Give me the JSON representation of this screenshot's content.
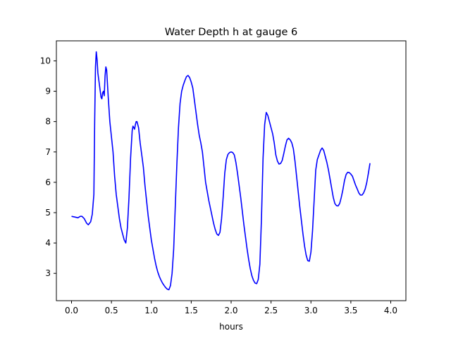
{
  "chart_data": {
    "type": "line",
    "title": "Water Depth h at gauge 6",
    "xlabel": "hours",
    "ylabel": "",
    "xlim": [
      -0.19,
      4.19
    ],
    "ylim": [
      2.1,
      10.66
    ],
    "xticks": [
      0.0,
      0.5,
      1.0,
      1.5,
      2.0,
      2.5,
      3.0,
      3.5,
      4.0
    ],
    "xtick_labels": [
      "0.0",
      "0.5",
      "1.0",
      "1.5",
      "2.0",
      "2.5",
      "3.0",
      "3.5",
      "4.0"
    ],
    "yticks": [
      3,
      4,
      5,
      6,
      7,
      8,
      9,
      10
    ],
    "ytick_labels": [
      "3",
      "4",
      "5",
      "6",
      "7",
      "8",
      "9",
      "10"
    ],
    "grid": false,
    "series": [
      {
        "color": "#0000ff",
        "points": [
          [
            0.0,
            4.88
          ],
          [
            0.05,
            4.85
          ],
          [
            0.08,
            4.83
          ],
          [
            0.11,
            4.88
          ],
          [
            0.13,
            4.88
          ],
          [
            0.16,
            4.8
          ],
          [
            0.19,
            4.65
          ],
          [
            0.21,
            4.6
          ],
          [
            0.24,
            4.7
          ],
          [
            0.26,
            4.95
          ],
          [
            0.28,
            5.6
          ],
          [
            0.29,
            8.0
          ],
          [
            0.3,
            9.8
          ],
          [
            0.31,
            10.3
          ],
          [
            0.32,
            10.05
          ],
          [
            0.33,
            9.6
          ],
          [
            0.35,
            9.2
          ],
          [
            0.37,
            8.8
          ],
          [
            0.38,
            8.75
          ],
          [
            0.39,
            8.95
          ],
          [
            0.4,
            9.0
          ],
          [
            0.41,
            8.85
          ],
          [
            0.42,
            9.5
          ],
          [
            0.43,
            9.8
          ],
          [
            0.44,
            9.7
          ],
          [
            0.46,
            8.8
          ],
          [
            0.48,
            8.0
          ],
          [
            0.5,
            7.5
          ],
          [
            0.52,
            7.0
          ],
          [
            0.54,
            6.2
          ],
          [
            0.56,
            5.6
          ],
          [
            0.58,
            5.2
          ],
          [
            0.6,
            4.8
          ],
          [
            0.62,
            4.5
          ],
          [
            0.64,
            4.3
          ],
          [
            0.66,
            4.1
          ],
          [
            0.68,
            4.0
          ],
          [
            0.7,
            4.5
          ],
          [
            0.72,
            5.5
          ],
          [
            0.74,
            6.8
          ],
          [
            0.76,
            7.7
          ],
          [
            0.77,
            7.85
          ],
          [
            0.78,
            7.8
          ],
          [
            0.79,
            7.75
          ],
          [
            0.8,
            7.9
          ],
          [
            0.81,
            8.0
          ],
          [
            0.82,
            8.0
          ],
          [
            0.84,
            7.8
          ],
          [
            0.86,
            7.3
          ],
          [
            0.88,
            6.9
          ],
          [
            0.9,
            6.5
          ],
          [
            0.92,
            5.9
          ],
          [
            0.94,
            5.4
          ],
          [
            0.96,
            4.9
          ],
          [
            0.98,
            4.5
          ],
          [
            1.0,
            4.1
          ],
          [
            1.02,
            3.8
          ],
          [
            1.04,
            3.5
          ],
          [
            1.06,
            3.25
          ],
          [
            1.08,
            3.05
          ],
          [
            1.1,
            2.9
          ],
          [
            1.12,
            2.78
          ],
          [
            1.14,
            2.68
          ],
          [
            1.16,
            2.6
          ],
          [
            1.18,
            2.53
          ],
          [
            1.2,
            2.48
          ],
          [
            1.22,
            2.46
          ],
          [
            1.24,
            2.6
          ],
          [
            1.26,
            3.0
          ],
          [
            1.28,
            3.8
          ],
          [
            1.3,
            5.2
          ],
          [
            1.32,
            6.6
          ],
          [
            1.34,
            7.8
          ],
          [
            1.36,
            8.6
          ],
          [
            1.38,
            9.0
          ],
          [
            1.4,
            9.2
          ],
          [
            1.42,
            9.35
          ],
          [
            1.44,
            9.48
          ],
          [
            1.46,
            9.52
          ],
          [
            1.48,
            9.45
          ],
          [
            1.5,
            9.3
          ],
          [
            1.52,
            9.1
          ],
          [
            1.54,
            8.7
          ],
          [
            1.56,
            8.3
          ],
          [
            1.58,
            7.9
          ],
          [
            1.6,
            7.55
          ],
          [
            1.62,
            7.3
          ],
          [
            1.64,
            7.0
          ],
          [
            1.66,
            6.5
          ],
          [
            1.68,
            6.0
          ],
          [
            1.7,
            5.7
          ],
          [
            1.72,
            5.4
          ],
          [
            1.74,
            5.15
          ],
          [
            1.76,
            4.9
          ],
          [
            1.78,
            4.65
          ],
          [
            1.8,
            4.45
          ],
          [
            1.82,
            4.3
          ],
          [
            1.84,
            4.25
          ],
          [
            1.86,
            4.35
          ],
          [
            1.88,
            4.8
          ],
          [
            1.9,
            5.5
          ],
          [
            1.92,
            6.3
          ],
          [
            1.94,
            6.75
          ],
          [
            1.96,
            6.92
          ],
          [
            1.98,
            6.98
          ],
          [
            2.0,
            7.0
          ],
          [
            2.02,
            6.98
          ],
          [
            2.04,
            6.9
          ],
          [
            2.06,
            6.65
          ],
          [
            2.08,
            6.3
          ],
          [
            2.1,
            5.9
          ],
          [
            2.12,
            5.5
          ],
          [
            2.14,
            5.05
          ],
          [
            2.16,
            4.6
          ],
          [
            2.18,
            4.2
          ],
          [
            2.2,
            3.8
          ],
          [
            2.22,
            3.45
          ],
          [
            2.24,
            3.15
          ],
          [
            2.26,
            2.92
          ],
          [
            2.28,
            2.77
          ],
          [
            2.3,
            2.68
          ],
          [
            2.32,
            2.66
          ],
          [
            2.34,
            2.8
          ],
          [
            2.36,
            3.3
          ],
          [
            2.38,
            4.8
          ],
          [
            2.4,
            6.8
          ],
          [
            2.42,
            7.9
          ],
          [
            2.44,
            8.3
          ],
          [
            2.46,
            8.2
          ],
          [
            2.48,
            8.0
          ],
          [
            2.5,
            7.8
          ],
          [
            2.52,
            7.6
          ],
          [
            2.54,
            7.3
          ],
          [
            2.56,
            6.9
          ],
          [
            2.58,
            6.7
          ],
          [
            2.6,
            6.6
          ],
          [
            2.62,
            6.62
          ],
          [
            2.64,
            6.72
          ],
          [
            2.66,
            6.95
          ],
          [
            2.68,
            7.2
          ],
          [
            2.7,
            7.4
          ],
          [
            2.72,
            7.45
          ],
          [
            2.74,
            7.4
          ],
          [
            2.76,
            7.3
          ],
          [
            2.78,
            7.1
          ],
          [
            2.8,
            6.7
          ],
          [
            2.82,
            6.2
          ],
          [
            2.84,
            5.7
          ],
          [
            2.86,
            5.2
          ],
          [
            2.88,
            4.75
          ],
          [
            2.9,
            4.3
          ],
          [
            2.92,
            3.9
          ],
          [
            2.94,
            3.6
          ],
          [
            2.96,
            3.42
          ],
          [
            2.98,
            3.4
          ],
          [
            3.0,
            3.7
          ],
          [
            3.02,
            4.4
          ],
          [
            3.04,
            5.4
          ],
          [
            3.06,
            6.4
          ],
          [
            3.08,
            6.75
          ],
          [
            3.1,
            6.9
          ],
          [
            3.12,
            7.05
          ],
          [
            3.14,
            7.13
          ],
          [
            3.16,
            7.05
          ],
          [
            3.18,
            6.85
          ],
          [
            3.2,
            6.65
          ],
          [
            3.22,
            6.4
          ],
          [
            3.24,
            6.1
          ],
          [
            3.26,
            5.8
          ],
          [
            3.28,
            5.5
          ],
          [
            3.3,
            5.3
          ],
          [
            3.32,
            5.23
          ],
          [
            3.34,
            5.22
          ],
          [
            3.36,
            5.3
          ],
          [
            3.38,
            5.5
          ],
          [
            3.4,
            5.75
          ],
          [
            3.42,
            6.05
          ],
          [
            3.44,
            6.25
          ],
          [
            3.46,
            6.33
          ],
          [
            3.48,
            6.32
          ],
          [
            3.5,
            6.27
          ],
          [
            3.52,
            6.2
          ],
          [
            3.54,
            6.05
          ],
          [
            3.56,
            5.9
          ],
          [
            3.58,
            5.78
          ],
          [
            3.6,
            5.65
          ],
          [
            3.62,
            5.58
          ],
          [
            3.64,
            5.58
          ],
          [
            3.66,
            5.65
          ],
          [
            3.68,
            5.78
          ],
          [
            3.7,
            6.0
          ],
          [
            3.72,
            6.3
          ],
          [
            3.74,
            6.63
          ]
        ]
      }
    ]
  }
}
